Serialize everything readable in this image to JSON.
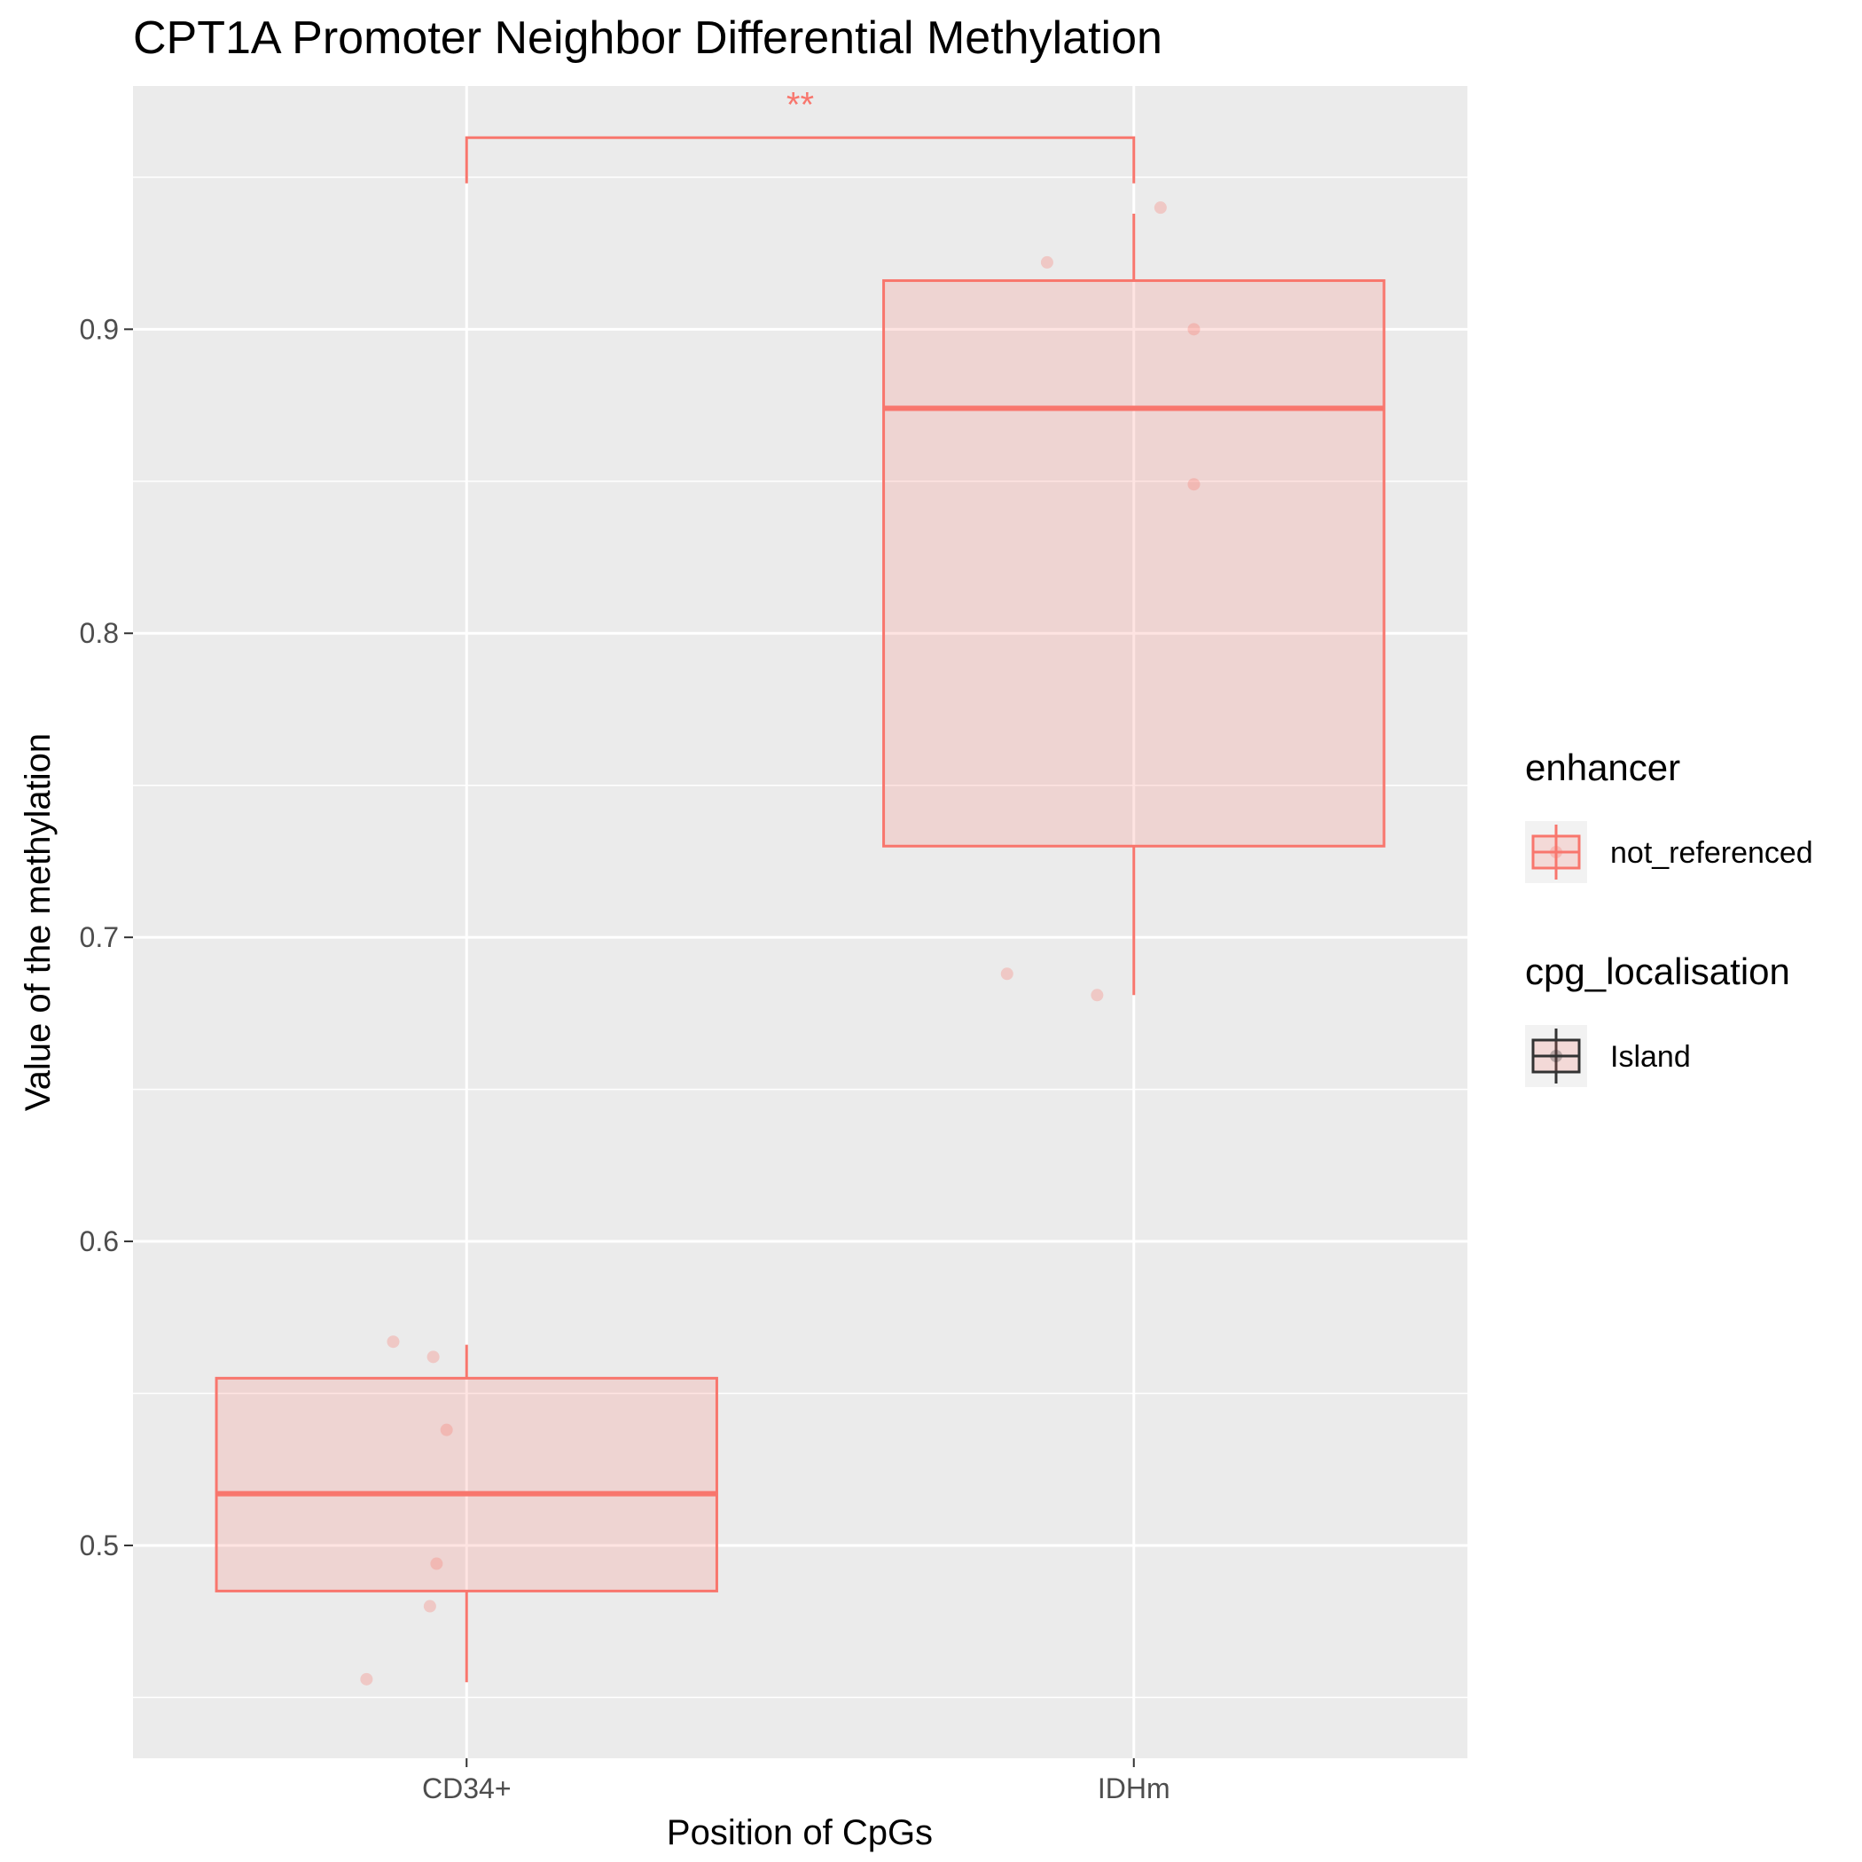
{
  "chart_data": {
    "type": "box",
    "title": "CPT1A Promoter Neighbor Differential Methylation",
    "xlabel": "Position of CpGs",
    "ylabel": "Value of the methylation",
    "categories": [
      "CD34+",
      "IDHm"
    ],
    "ylim": [
      0.43,
      0.98
    ],
    "yticks": [
      0.5,
      0.6,
      0.7,
      0.8,
      0.9
    ],
    "ytick_labels": [
      "0.5",
      "0.6",
      "0.7",
      "0.8",
      "0.9"
    ],
    "grid": true,
    "boxes": [
      {
        "category": "CD34+",
        "whisker_low": 0.455,
        "q1": 0.485,
        "median": 0.517,
        "q3": 0.555,
        "whisker_high": 0.566
      },
      {
        "category": "IDHm",
        "whisker_low": 0.681,
        "q1": 0.73,
        "median": 0.874,
        "q3": 0.916,
        "whisker_high": 0.938
      }
    ],
    "points": [
      {
        "category": "CD34+",
        "jitter": -0.11,
        "y": 0.567
      },
      {
        "category": "CD34+",
        "jitter": -0.05,
        "y": 0.562
      },
      {
        "category": "CD34+",
        "jitter": -0.03,
        "y": 0.538
      },
      {
        "category": "CD34+",
        "jitter": -0.045,
        "y": 0.494
      },
      {
        "category": "CD34+",
        "jitter": -0.055,
        "y": 0.48
      },
      {
        "category": "CD34+",
        "jitter": -0.15,
        "y": 0.456
      },
      {
        "category": "IDHm",
        "jitter": 0.04,
        "y": 0.94
      },
      {
        "category": "IDHm",
        "jitter": -0.13,
        "y": 0.922
      },
      {
        "category": "IDHm",
        "jitter": 0.09,
        "y": 0.9
      },
      {
        "category": "IDHm",
        "jitter": 0.09,
        "y": 0.849
      },
      {
        "category": "IDHm",
        "jitter": -0.19,
        "y": 0.688
      },
      {
        "category": "IDHm",
        "jitter": -0.055,
        "y": 0.681
      }
    ],
    "significance": {
      "from": "CD34+",
      "to": "IDHm",
      "label": "**",
      "bracket_y": 0.963,
      "tip_low_left": 0.948,
      "tip_low_right": 0.948
    },
    "legends": [
      {
        "title": "enhancer",
        "entries": [
          {
            "label": "not_referenced",
            "color": "#F8766D"
          }
        ]
      },
      {
        "title": "cpg_localisation",
        "entries": [
          {
            "label": "Island",
            "color": "#333333"
          }
        ]
      }
    ],
    "colors": {
      "series": "#F8766D",
      "box_fill": "#F8766D",
      "panel_background": "#EBEBEB",
      "grid": "#FFFFFF",
      "legend_key_background": "#F2F2F2"
    },
    "legend_position": "right"
  }
}
